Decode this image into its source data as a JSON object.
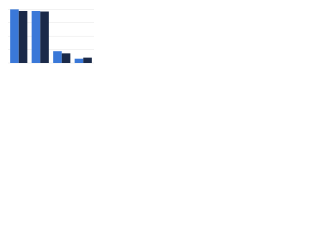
{
  "chart_data": {
    "type": "bar",
    "categories": [
      null,
      null,
      null,
      null
    ],
    "series": [
      {
        "color": "#3a78d8",
        "values": [
          100,
          97,
          22,
          8
        ]
      },
      {
        "color": "#1b2a49",
        "values": [
          97,
          96,
          18,
          10
        ]
      }
    ],
    "ylim": [
      0,
      110
    ],
    "yticks": [
      0,
      25,
      50,
      75,
      100
    ],
    "grid": true
  }
}
